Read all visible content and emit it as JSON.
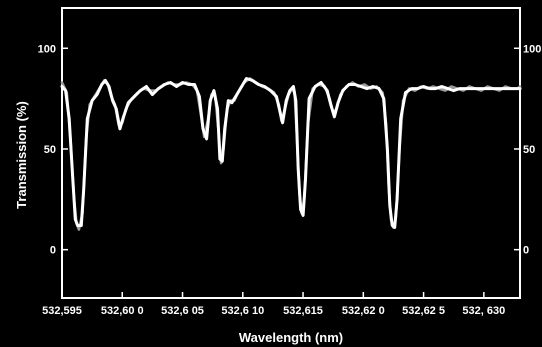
{
  "chart_data": {
    "type": "line",
    "title": "",
    "xlabel": "Wavelength (nm)",
    "ylabel": "Transmission (%)",
    "xlim": [
      532.595,
      532.633
    ],
    "ylim": [
      -24,
      120
    ],
    "xticks": [
      532.595,
      532.6,
      532.605,
      532.61,
      532.615,
      532.62,
      532.625,
      532.63
    ],
    "xtick_labels": [
      "532,595",
      "532,60 0",
      "532,6 05",
      "532,6 10",
      "532,615",
      "532,62 0",
      "532,62 5",
      "532, 630"
    ],
    "yticks": [
      0,
      50,
      100
    ],
    "ytick_labels": [
      "0",
      "50",
      "100"
    ],
    "y2tick_labels": [
      "0",
      "50",
      "100"
    ],
    "grid": false,
    "legend": "none",
    "colors": {
      "background": "#000000",
      "axes": "#ffffff",
      "series_1": "#ffffff",
      "series_2": "#9a9a9a"
    },
    "series": [
      {
        "values": [
          [
            532.595,
            81
          ],
          [
            532.5953,
            79
          ],
          [
            532.5956,
            65
          ],
          [
            532.5959,
            35
          ],
          [
            532.5961,
            15
          ],
          [
            532.5963,
            12
          ],
          [
            532.5966,
            12
          ],
          [
            532.5968,
            30
          ],
          [
            532.5971,
            65
          ],
          [
            532.5975,
            74
          ],
          [
            532.5979,
            77
          ],
          [
            532.5983,
            82
          ],
          [
            532.5986,
            84
          ],
          [
            532.5989,
            81
          ],
          [
            532.5992,
            74
          ],
          [
            532.5995,
            70
          ],
          [
            532.5998,
            60
          ],
          [
            532.6001,
            66
          ],
          [
            532.6005,
            73
          ],
          [
            532.601,
            76
          ],
          [
            532.6015,
            79
          ],
          [
            532.602,
            81
          ],
          [
            532.6025,
            77
          ],
          [
            532.603,
            80
          ],
          [
            532.6035,
            82
          ],
          [
            532.604,
            83
          ],
          [
            532.6045,
            81
          ],
          [
            532.605,
            83
          ],
          [
            532.6055,
            82
          ],
          [
            532.606,
            82
          ],
          [
            532.6064,
            76
          ],
          [
            532.6067,
            60
          ],
          [
            532.607,
            55
          ],
          [
            532.6073,
            74
          ],
          [
            532.6076,
            79
          ],
          [
            532.6079,
            70
          ],
          [
            532.6081,
            45
          ],
          [
            532.6083,
            44
          ],
          [
            532.6085,
            60
          ],
          [
            532.6088,
            74
          ],
          [
            532.6091,
            73
          ],
          [
            532.6094,
            76
          ],
          [
            532.6098,
            80
          ],
          [
            532.6103,
            85
          ],
          [
            532.6108,
            84
          ],
          [
            532.6113,
            82
          ],
          [
            532.6118,
            81
          ],
          [
            532.6123,
            79
          ],
          [
            532.6128,
            76
          ],
          [
            532.6131,
            68
          ],
          [
            532.6133,
            63
          ],
          [
            532.6136,
            74
          ],
          [
            532.6139,
            79
          ],
          [
            532.6142,
            81
          ],
          [
            532.6144,
            74
          ],
          [
            532.6146,
            40
          ],
          [
            532.6148,
            20
          ],
          [
            532.615,
            17
          ],
          [
            532.6152,
            35
          ],
          [
            532.6155,
            75
          ],
          [
            532.616,
            81
          ],
          [
            532.6165,
            83
          ],
          [
            532.617,
            79
          ],
          [
            532.6173,
            72
          ],
          [
            532.6176,
            66
          ],
          [
            532.6179,
            73
          ],
          [
            532.6183,
            79
          ],
          [
            532.6188,
            82
          ],
          [
            532.6193,
            82
          ],
          [
            532.6198,
            81
          ],
          [
            532.6203,
            80
          ],
          [
            532.6208,
            81
          ],
          [
            532.6213,
            80
          ],
          [
            532.6217,
            75
          ],
          [
            532.622,
            50
          ],
          [
            532.6222,
            22
          ],
          [
            532.6224,
            12
          ],
          [
            532.6226,
            11
          ],
          [
            532.6228,
            25
          ],
          [
            532.6231,
            65
          ],
          [
            532.6235,
            78
          ],
          [
            532.624,
            80
          ],
          [
            532.6245,
            80
          ],
          [
            532.625,
            81
          ],
          [
            532.6255,
            80
          ],
          [
            532.626,
            80
          ],
          [
            532.6265,
            81
          ],
          [
            532.627,
            80
          ],
          [
            532.6275,
            79
          ],
          [
            532.628,
            80
          ],
          [
            532.6285,
            80
          ],
          [
            532.629,
            80
          ],
          [
            532.6295,
            80
          ],
          [
            532.63,
            80
          ],
          [
            532.6305,
            80
          ],
          [
            532.631,
            80
          ],
          [
            532.6315,
            80
          ],
          [
            532.632,
            80
          ],
          [
            532.6325,
            80
          ],
          [
            532.633,
            80
          ]
        ]
      },
      {
        "values": [
          [
            532.595,
            83
          ],
          [
            532.5954,
            78
          ],
          [
            532.5957,
            55
          ],
          [
            532.596,
            25
          ],
          [
            532.5962,
            13
          ],
          [
            532.5964,
            10
          ],
          [
            532.5967,
            18
          ],
          [
            532.597,
            55
          ],
          [
            532.5973,
            72
          ],
          [
            532.5977,
            76
          ],
          [
            532.5981,
            80
          ],
          [
            532.5985,
            84
          ],
          [
            532.5988,
            82
          ],
          [
            532.5991,
            76
          ],
          [
            532.5994,
            72
          ],
          [
            532.5997,
            62
          ],
          [
            532.6,
            63
          ],
          [
            532.6003,
            70
          ],
          [
            532.6008,
            75
          ],
          [
            532.6013,
            78
          ],
          [
            532.6018,
            80
          ],
          [
            532.6023,
            79
          ],
          [
            532.6028,
            79
          ],
          [
            532.6033,
            81
          ],
          [
            532.6038,
            83
          ],
          [
            532.6043,
            82
          ],
          [
            532.6048,
            82
          ],
          [
            532.6053,
            83
          ],
          [
            532.6058,
            82
          ],
          [
            532.6062,
            79
          ],
          [
            532.6065,
            68
          ],
          [
            532.6068,
            56
          ],
          [
            532.6071,
            64
          ],
          [
            532.6074,
            77
          ],
          [
            532.6077,
            77
          ],
          [
            532.608,
            58
          ],
          [
            532.6082,
            43
          ],
          [
            532.6084,
            50
          ],
          [
            532.6087,
            70
          ],
          [
            532.609,
            74
          ],
          [
            532.6093,
            74
          ],
          [
            532.6096,
            78
          ],
          [
            532.6101,
            83
          ],
          [
            532.6106,
            85
          ],
          [
            532.6111,
            83
          ],
          [
            532.6116,
            81
          ],
          [
            532.6121,
            80
          ],
          [
            532.6126,
            78
          ],
          [
            532.613,
            72
          ],
          [
            532.6132,
            64
          ],
          [
            532.6135,
            70
          ],
          [
            532.6138,
            77
          ],
          [
            532.6141,
            80
          ],
          [
            532.6143,
            78
          ],
          [
            532.6145,
            55
          ],
          [
            532.6147,
            28
          ],
          [
            532.6149,
            18
          ],
          [
            532.6151,
            25
          ],
          [
            532.6154,
            62
          ],
          [
            532.6158,
            80
          ],
          [
            532.6163,
            82
          ],
          [
            532.6168,
            81
          ],
          [
            532.6172,
            75
          ],
          [
            532.6175,
            68
          ],
          [
            532.6178,
            70
          ],
          [
            532.6181,
            77
          ],
          [
            532.6186,
            81
          ],
          [
            532.6191,
            83
          ],
          [
            532.6196,
            81
          ],
          [
            532.6201,
            82
          ],
          [
            532.6206,
            80
          ],
          [
            532.6211,
            81
          ],
          [
            532.6216,
            78
          ],
          [
            532.6219,
            62
          ],
          [
            532.6221,
            32
          ],
          [
            532.6223,
            15
          ],
          [
            532.6225,
            11
          ],
          [
            532.6227,
            16
          ],
          [
            532.623,
            50
          ],
          [
            532.6233,
            74
          ],
          [
            532.6238,
            80
          ],
          [
            532.6243,
            79
          ],
          [
            532.6248,
            81
          ],
          [
            532.6253,
            80
          ],
          [
            532.6258,
            81
          ],
          [
            532.6263,
            80
          ],
          [
            532.6268,
            79
          ],
          [
            532.6273,
            81
          ],
          [
            532.6278,
            80
          ],
          [
            532.6283,
            79
          ],
          [
            532.6288,
            81
          ],
          [
            532.6293,
            80
          ],
          [
            532.6298,
            79
          ],
          [
            532.6303,
            81
          ],
          [
            532.6308,
            80
          ],
          [
            532.6313,
            79
          ],
          [
            532.6318,
            81
          ],
          [
            532.6323,
            80
          ],
          [
            532.6328,
            80
          ],
          [
            532.633,
            81
          ]
        ]
      }
    ]
  }
}
